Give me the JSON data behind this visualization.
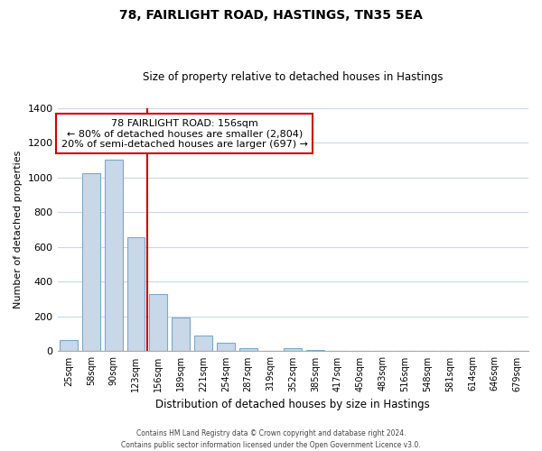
{
  "title": "78, FAIRLIGHT ROAD, HASTINGS, TN35 5EA",
  "subtitle": "Size of property relative to detached houses in Hastings",
  "xlabel": "Distribution of detached houses by size in Hastings",
  "ylabel": "Number of detached properties",
  "bar_labels": [
    "25sqm",
    "58sqm",
    "90sqm",
    "123sqm",
    "156sqm",
    "189sqm",
    "221sqm",
    "254sqm",
    "287sqm",
    "319sqm",
    "352sqm",
    "385sqm",
    "417sqm",
    "450sqm",
    "483sqm",
    "516sqm",
    "548sqm",
    "581sqm",
    "614sqm",
    "646sqm",
    "679sqm"
  ],
  "bar_values": [
    65,
    1025,
    1100,
    655,
    330,
    195,
    90,
    48,
    20,
    0,
    20,
    8,
    0,
    0,
    0,
    0,
    0,
    0,
    0,
    0,
    0
  ],
  "bar_color": "#c8d8e8",
  "bar_edgecolor": "#7aaac8",
  "red_line_index": 4,
  "ylim": [
    0,
    1400
  ],
  "yticks": [
    0,
    200,
    400,
    600,
    800,
    1000,
    1200,
    1400
  ],
  "annotation_line1": "78 FAIRLIGHT ROAD: 156sqm",
  "annotation_line2": "← 80% of detached houses are smaller (2,804)",
  "annotation_line3": "20% of semi-detached houses are larger (697) →",
  "annotation_box_color": "#ffffff",
  "annotation_box_edgecolor": "#cc0000",
  "footer_line1": "Contains HM Land Registry data © Crown copyright and database right 2024.",
  "footer_line2": "Contains public sector information licensed under the Open Government Licence v3.0.",
  "background_color": "#ffffff",
  "grid_color": "#c8d8e8"
}
